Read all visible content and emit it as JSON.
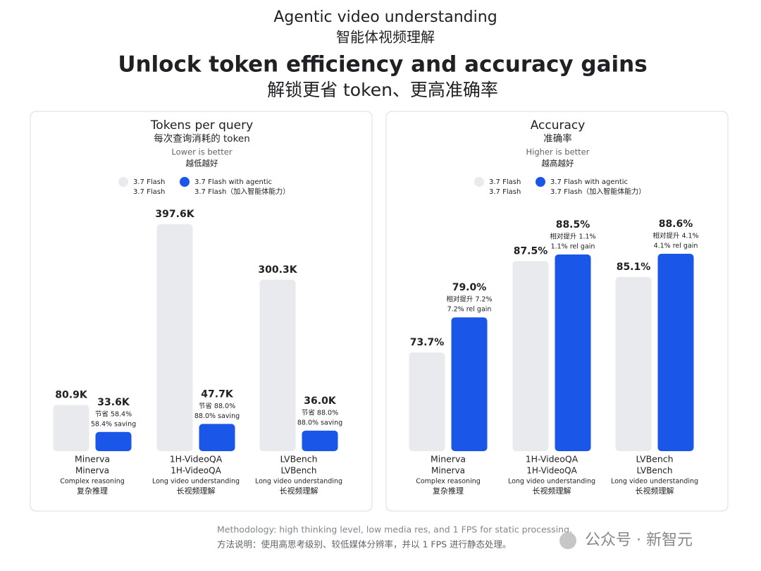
{
  "header": {
    "eyebrow": "Agentic video understanding",
    "eyebrow_zh": "智能体视频理解",
    "title": "Unlock token efficiency and accuracy gains",
    "title_zh": "解锁更省 token、更高准确率"
  },
  "chart_data": [
    {
      "type": "bar",
      "title": "Tokens per query",
      "title_zh": "每次查询消耗的 token",
      "note": "Lower is better",
      "note_zh": "越低越好",
      "categories": [
        "Minerva",
        "1H-VideoQA",
        "LVBench"
      ],
      "categories_zh": [
        "Minerva",
        "1H-VideoQA",
        "LVBench"
      ],
      "category_descriptions": [
        "Complex reasoning",
        "Long video understanding",
        "Long video understanding"
      ],
      "category_descriptions_zh": [
        "复杂推理",
        "长视频理解",
        "长视频理解"
      ],
      "series": [
        {
          "name": "3.7 Flash",
          "name_zh": "3.7 Flash",
          "color": "#e8eaed",
          "values": [
            80.9,
            397.6,
            300.3
          ],
          "value_labels": [
            "80.9K",
            "397.6K",
            "300.3K"
          ]
        },
        {
          "name": "3.7 Flash with agentic",
          "name_zh": "3.7 Flash（加入智能体能力）",
          "color": "#1a56e8",
          "values": [
            33.6,
            47.7,
            36.0
          ],
          "value_labels": [
            "33.6K",
            "47.7K",
            "36.0K"
          ],
          "annotations": [
            [
              "节省 58.4%",
              "58.4% saving"
            ],
            [
              "节省 88.0%",
              "88.0% saving"
            ],
            [
              "节省 88.0%",
              "88.0% saving"
            ]
          ]
        }
      ]
    },
    {
      "type": "bar",
      "title": "Accuracy",
      "title_zh": "准确率",
      "note": "Higher is better",
      "note_zh": "越高越好",
      "categories": [
        "Minerva",
        "1H-VideoQA",
        "LVBench"
      ],
      "categories_zh": [
        "Minerva",
        "1H-VideoQA",
        "LVBench"
      ],
      "category_descriptions": [
        "Complex reasoning",
        "Long video understanding",
        "Long video understanding"
      ],
      "category_descriptions_zh": [
        "复杂推理",
        "长视频理解",
        "长视频理解"
      ],
      "series": [
        {
          "name": "3.7 Flash",
          "name_zh": "3.7 Flash",
          "color": "#e8eaed",
          "values": [
            73.7,
            87.5,
            85.1
          ],
          "value_labels": [
            "73.7%",
            "87.5%",
            "85.1%"
          ]
        },
        {
          "name": "3.7 Flash with agentic",
          "name_zh": "3.7 Flash（加入智能体能力）",
          "color": "#1a56e8",
          "values": [
            79.0,
            88.5,
            88.6
          ],
          "value_labels": [
            "79.0%",
            "88.5%",
            "88.6%"
          ],
          "annotations": [
            [
              "相对提升 7.2%",
              "7.2% rel gain"
            ],
            [
              "相对提升 1.1%",
              "1.1% rel gain"
            ],
            [
              "相对提升 4.1%",
              "4.1% rel gain"
            ]
          ]
        }
      ]
    }
  ],
  "footer": {
    "methodology": "Methodology: high thinking level, low media res, and 1 FPS for static processing.",
    "methodology_zh": "方法说明：使用高思考级别、较低媒体分辨率，并以 1 FPS 进行静态处理。"
  },
  "watermark": "公众号 · 新智元"
}
